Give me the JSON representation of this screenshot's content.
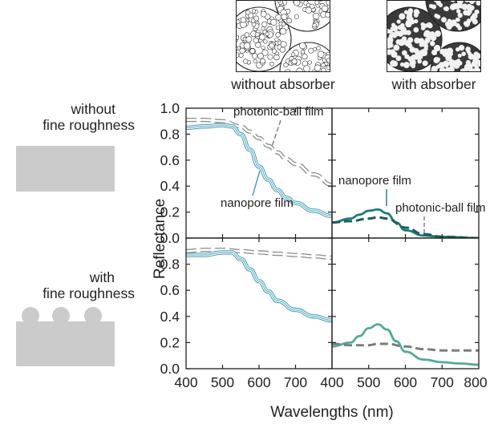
{
  "thumbnails": [
    {
      "caption": "without absorber",
      "style": "outline"
    },
    {
      "caption": "with absorber",
      "style": "dark"
    }
  ],
  "row_labels": [
    {
      "line1": "without",
      "line2": "fine roughness"
    },
    {
      "line1": "with",
      "line2": "fine roughness"
    }
  ],
  "colors": {
    "photonic_ball_no_absorber": "#8c8c8c",
    "nanopore_no_absorber": "#7ec9d6",
    "nanopore_with_absorber_top": "#1b7c77",
    "photonic_ball_with_absorber_top": "#1b5e5c",
    "nanopore_with_absorber_bottom": "#56a999",
    "photonic_ball_with_absorber_bottom": "#7d7d7d",
    "schematic_fill": "#cbcbcb"
  },
  "chart_data": {
    "type": "line",
    "xlabel": "Wavelengths (nm)",
    "ylabel": "Reflectance",
    "xlim": [
      400,
      800
    ],
    "ylim": [
      0,
      1.0
    ],
    "x_ticks": [
      400,
      500,
      600,
      700
    ],
    "x_ticks_last_panel": [
      400,
      500,
      600,
      700,
      800
    ],
    "y_ticks_top": [
      "0.0",
      "0.2",
      "0.4",
      "0.6",
      "0.8",
      "1.0"
    ],
    "y_ticks_bottom": [
      "0.0",
      "0.2",
      "0.4",
      "0.6",
      "0.8"
    ],
    "panels": [
      {
        "id": "top-left",
        "annotations": [
          {
            "text": "photonic-ball film",
            "series": "photonic-ball film"
          },
          {
            "text": "nanopore film",
            "series": "nanopore film"
          }
        ],
        "series": [
          {
            "name": "photonic-ball film",
            "style": "dashed-outline",
            "x": [
              400,
              450,
              500,
              550,
              575,
              600,
              625,
              650,
              675,
              700,
              750,
              800
            ],
            "y": [
              0.91,
              0.91,
              0.9,
              0.86,
              0.82,
              0.77,
              0.71,
              0.66,
              0.61,
              0.57,
              0.49,
              0.41
            ]
          },
          {
            "name": "nanopore film",
            "style": "double-outline",
            "x": [
              400,
              450,
              500,
              525,
              550,
              575,
              600,
              625,
              650,
              675,
              700,
              750,
              800
            ],
            "y": [
              0.85,
              0.86,
              0.87,
              0.86,
              0.8,
              0.68,
              0.55,
              0.45,
              0.37,
              0.31,
              0.27,
              0.21,
              0.17
            ]
          }
        ]
      },
      {
        "id": "top-right",
        "annotations": [
          {
            "text": "nanopore film",
            "series": "nanopore film"
          },
          {
            "text": "photonic-ball film",
            "series": "photonic-ball film"
          }
        ],
        "series": [
          {
            "name": "nanopore film",
            "style": "solid",
            "x": [
              400,
              450,
              475,
              500,
              525,
              550,
              575,
              600,
              650,
              700,
              800
            ],
            "y": [
              0.12,
              0.15,
              0.18,
              0.21,
              0.22,
              0.19,
              0.12,
              0.06,
              0.02,
              0.01,
              0.0
            ]
          },
          {
            "name": "photonic-ball film",
            "style": "dashed",
            "x": [
              400,
              450,
              500,
              525,
              550,
              600,
              650,
              700,
              800
            ],
            "y": [
              0.12,
              0.13,
              0.15,
              0.16,
              0.15,
              0.08,
              0.03,
              0.01,
              0.0
            ]
          }
        ]
      },
      {
        "id": "bottom-left",
        "annotations": [],
        "series": [
          {
            "name": "photonic-ball film",
            "style": "dashed-outline",
            "x": [
              400,
              450,
              500,
              550,
              600,
              650,
              700,
              750,
              800
            ],
            "y": [
              0.9,
              0.91,
              0.91,
              0.9,
              0.89,
              0.88,
              0.87,
              0.86,
              0.85
            ]
          },
          {
            "name": "nanopore film",
            "style": "double-outline",
            "x": [
              400,
              450,
              500,
              525,
              550,
              575,
              600,
              625,
              650,
              700,
              750,
              800
            ],
            "y": [
              0.87,
              0.87,
              0.89,
              0.89,
              0.84,
              0.76,
              0.67,
              0.59,
              0.52,
              0.45,
              0.4,
              0.37
            ]
          }
        ]
      },
      {
        "id": "bottom-right",
        "annotations": [],
        "series": [
          {
            "name": "nanopore film",
            "style": "solid",
            "x": [
              400,
              450,
              475,
              500,
              525,
              550,
              575,
              600,
              650,
              700,
              750,
              800
            ],
            "y": [
              0.17,
              0.2,
              0.25,
              0.31,
              0.34,
              0.3,
              0.21,
              0.13,
              0.07,
              0.05,
              0.04,
              0.03
            ]
          },
          {
            "name": "photonic-ball film",
            "style": "dashed",
            "x": [
              400,
              450,
              500,
              525,
              550,
              600,
              650,
              700,
              800
            ],
            "y": [
              0.19,
              0.18,
              0.18,
              0.19,
              0.19,
              0.17,
              0.15,
              0.14,
              0.14
            ]
          }
        ]
      }
    ]
  }
}
